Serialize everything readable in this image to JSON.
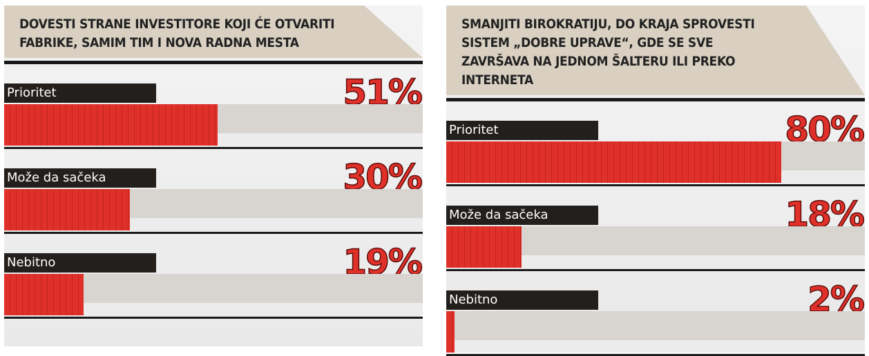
{
  "chart_data": [
    {
      "type": "bar",
      "orientation": "horizontal",
      "title": "DOVESTI STRANE INVESTITORE KOJI ĆE OTVARITI FABRIKE, SAMIM TIM I NOVA RADNA MESTA",
      "categories": [
        "Prioritet",
        "Može da sačeka",
        "Nebitno"
      ],
      "values": [
        51,
        30,
        19
      ],
      "value_labels": [
        "51%",
        "30%",
        "19%"
      ],
      "color": "#e0302a",
      "xlim": [
        0,
        100
      ]
    },
    {
      "type": "bar",
      "orientation": "horizontal",
      "title": "SMANJITI BIROKRATIJU, DO KRAJA SPROVESTI SISTEM „DOBRE UPRAVE“, GDE SE SVE ZAVRŠAVA NA JEDNOM ŠALTERU ILI PREKO INTERNETA",
      "categories": [
        "Prioritet",
        "Može da sačeka",
        "Nebitno"
      ],
      "values": [
        80,
        18,
        2
      ],
      "value_labels": [
        "80%",
        "18%",
        "2%"
      ],
      "color": "#e0302a",
      "xlim": [
        0,
        100
      ]
    }
  ]
}
